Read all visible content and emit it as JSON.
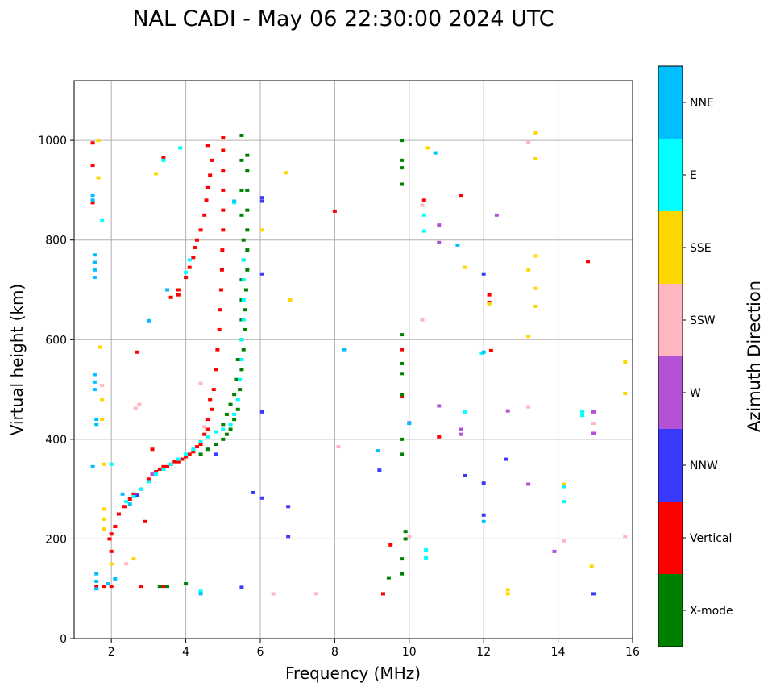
{
  "chart_data": {
    "type": "scatter",
    "title": "NAL CADI - May 06 22:30:00 2024 UTC",
    "xlabel": "Frequency (MHz)",
    "ylabel": "Virtual height (km)",
    "xlim": [
      1,
      16
    ],
    "ylim": [
      0,
      1120
    ],
    "xticks": [
      2,
      4,
      6,
      8,
      10,
      12,
      14,
      16
    ],
    "yticks": [
      0,
      200,
      400,
      600,
      800,
      1000
    ],
    "grid": true,
    "colorbar": {
      "title": "Azimuth Direction",
      "categories": [
        {
          "label": "X-mode",
          "color": "#008000"
        },
        {
          "label": "Vertical",
          "color": "#ff0000"
        },
        {
          "label": "NNW",
          "color": "#3a3aff"
        },
        {
          "label": "W",
          "color": "#b452d6"
        },
        {
          "label": "SSW",
          "color": "#ffb6c1"
        },
        {
          "label": "SSE",
          "color": "#ffd700"
        },
        {
          "label": "E",
          "color": "#00ffff"
        },
        {
          "label": "NNE",
          "color": "#00bfff"
        }
      ]
    },
    "series": [
      {
        "name": "Vertical",
        "color": "#ff0000",
        "points": [
          [
            2.0,
            210
          ],
          [
            2.1,
            225
          ],
          [
            2.2,
            250
          ],
          [
            2.35,
            265
          ],
          [
            2.5,
            280
          ],
          [
            2.6,
            290
          ],
          [
            2.8,
            300
          ],
          [
            3.0,
            320
          ],
          [
            3.2,
            335
          ],
          [
            3.4,
            345
          ],
          [
            3.6,
            350
          ],
          [
            3.8,
            355
          ],
          [
            4.0,
            365
          ],
          [
            4.2,
            375
          ],
          [
            4.4,
            390
          ],
          [
            4.6,
            420
          ],
          [
            4.7,
            460
          ],
          [
            4.75,
            500
          ],
          [
            4.8,
            540
          ],
          [
            4.85,
            580
          ],
          [
            4.9,
            620
          ],
          [
            4.92,
            660
          ],
          [
            4.95,
            700
          ],
          [
            4.97,
            740
          ],
          [
            4.98,
            780
          ],
          [
            5.0,
            820
          ],
          [
            5.0,
            860
          ],
          [
            5.0,
            900
          ],
          [
            5.0,
            940
          ],
          [
            5.0,
            980
          ],
          [
            5.0,
            1005
          ],
          [
            3.3,
            340
          ],
          [
            3.5,
            345
          ],
          [
            3.7,
            355
          ],
          [
            3.9,
            360
          ],
          [
            4.1,
            370
          ],
          [
            4.3,
            385
          ],
          [
            4.5,
            410
          ],
          [
            4.6,
            440
          ],
          [
            4.65,
            480
          ],
          [
            3.6,
            685
          ],
          [
            3.8,
            700
          ],
          [
            4.0,
            725
          ],
          [
            4.1,
            745
          ],
          [
            4.2,
            765
          ],
          [
            4.25,
            785
          ],
          [
            4.3,
            800
          ],
          [
            4.4,
            820
          ],
          [
            4.5,
            850
          ],
          [
            4.55,
            880
          ],
          [
            4.6,
            905
          ],
          [
            4.65,
            930
          ],
          [
            4.7,
            960
          ],
          [
            1.55,
            755
          ],
          [
            1.5,
            995
          ],
          [
            1.5,
            950
          ],
          [
            1.5,
            875
          ],
          [
            1.6,
            105
          ],
          [
            1.8,
            105
          ],
          [
            2.0,
            105
          ],
          [
            2.8,
            105
          ],
          [
            3.4,
            105
          ],
          [
            2.7,
            575
          ],
          [
            3.4,
            965
          ],
          [
            3.8,
            690
          ],
          [
            4.6,
            990
          ],
          [
            8.0,
            858
          ],
          [
            10.4,
            880
          ],
          [
            11.4,
            890
          ],
          [
            12.15,
            690
          ],
          [
            12.15,
            675
          ],
          [
            12.2,
            578
          ],
          [
            10.8,
            405
          ],
          [
            9.8,
            580
          ],
          [
            9.8,
            487
          ],
          [
            9.3,
            90
          ],
          [
            9.5,
            188
          ],
          [
            14.8,
            757
          ],
          [
            2.9,
            235
          ],
          [
            3.1,
            380
          ],
          [
            2.0,
            175
          ],
          [
            1.95,
            200
          ]
        ]
      },
      {
        "name": "X-mode",
        "color": "#008000",
        "points": [
          [
            4.4,
            370
          ],
          [
            4.6,
            380
          ],
          [
            4.8,
            390
          ],
          [
            5.0,
            400
          ],
          [
            5.1,
            410
          ],
          [
            5.2,
            420
          ],
          [
            5.3,
            440
          ],
          [
            5.4,
            460
          ],
          [
            5.45,
            500
          ],
          [
            5.5,
            540
          ],
          [
            5.55,
            580
          ],
          [
            5.6,
            620
          ],
          [
            5.6,
            660
          ],
          [
            5.62,
            700
          ],
          [
            5.65,
            740
          ],
          [
            5.65,
            780
          ],
          [
            5.65,
            820
          ],
          [
            5.65,
            860
          ],
          [
            5.65,
            900
          ],
          [
            5.65,
            940
          ],
          [
            5.65,
            970
          ],
          [
            5.0,
            430
          ],
          [
            5.1,
            450
          ],
          [
            5.2,
            470
          ],
          [
            5.3,
            490
          ],
          [
            5.35,
            520
          ],
          [
            5.4,
            560
          ],
          [
            5.5,
            600
          ],
          [
            5.5,
            640
          ],
          [
            5.5,
            680
          ],
          [
            5.5,
            720
          ],
          [
            5.55,
            760
          ],
          [
            5.55,
            800
          ],
          [
            5.5,
            850
          ],
          [
            5.5,
            900
          ],
          [
            5.5,
            960
          ],
          [
            5.5,
            1010
          ],
          [
            9.8,
            1000
          ],
          [
            9.8,
            960
          ],
          [
            9.8,
            945
          ],
          [
            9.8,
            912
          ],
          [
            9.8,
            610
          ],
          [
            9.8,
            552
          ],
          [
            9.8,
            532
          ],
          [
            9.8,
            490
          ],
          [
            9.8,
            400
          ],
          [
            9.8,
            370
          ],
          [
            9.8,
            160
          ],
          [
            9.8,
            130
          ],
          [
            9.9,
            215
          ],
          [
            9.9,
            200
          ],
          [
            9.45,
            122
          ],
          [
            3.5,
            105
          ],
          [
            3.3,
            105
          ],
          [
            4.0,
            110
          ]
        ]
      },
      {
        "name": "NNW",
        "color": "#3a3aff",
        "points": [
          [
            6.05,
            885
          ],
          [
            6.05,
            878
          ],
          [
            6.05,
            732
          ],
          [
            6.05,
            455
          ],
          [
            6.05,
            282
          ],
          [
            5.8,
            293
          ],
          [
            5.5,
            103
          ],
          [
            6.75,
            265
          ],
          [
            6.75,
            205
          ],
          [
            9.2,
            338
          ],
          [
            10.0,
            433
          ],
          [
            11.5,
            327
          ],
          [
            12.0,
            732
          ],
          [
            12.0,
            312
          ],
          [
            12.0,
            248
          ],
          [
            12.6,
            360
          ],
          [
            14.95,
            90
          ],
          [
            4.8,
            370
          ],
          [
            2.7,
            288
          ]
        ]
      },
      {
        "name": "W",
        "color": "#b452d6",
        "points": [
          [
            10.8,
            830
          ],
          [
            10.8,
            795
          ],
          [
            10.8,
            467
          ],
          [
            11.4,
            420
          ],
          [
            11.4,
            410
          ],
          [
            12.35,
            850
          ],
          [
            12.65,
            457
          ],
          [
            13.2,
            310
          ],
          [
            13.9,
            175
          ],
          [
            14.95,
            455
          ],
          [
            14.95,
            412
          ],
          [
            3.1,
            330
          ]
        ]
      },
      {
        "name": "SSW",
        "color": "#ffb6c1",
        "points": [
          [
            10.35,
            870
          ],
          [
            10.35,
            640
          ],
          [
            10.0,
            432
          ],
          [
            10.0,
            205
          ],
          [
            8.1,
            385
          ],
          [
            6.35,
            90
          ],
          [
            7.5,
            90
          ],
          [
            2.65,
            462
          ],
          [
            2.75,
            470
          ],
          [
            1.75,
            508
          ],
          [
            13.2,
            997
          ],
          [
            13.2,
            465
          ],
          [
            14.15,
            196
          ],
          [
            14.95,
            432
          ],
          [
            15.8,
            205
          ],
          [
            2.4,
            150
          ],
          [
            4.4,
            512
          ],
          [
            4.5,
            425
          ]
        ]
      },
      {
        "name": "SSE",
        "color": "#ffd700",
        "points": [
          [
            1.65,
            1000
          ],
          [
            1.65,
            925
          ],
          [
            1.7,
            585
          ],
          [
            1.75,
            480
          ],
          [
            1.75,
            440
          ],
          [
            1.8,
            350
          ],
          [
            1.8,
            260
          ],
          [
            1.8,
            240
          ],
          [
            6.7,
            935
          ],
          [
            6.8,
            680
          ],
          [
            6.05,
            820
          ],
          [
            10.5,
            985
          ],
          [
            11.5,
            745
          ],
          [
            12.15,
            672
          ],
          [
            13.2,
            740
          ],
          [
            13.2,
            607
          ],
          [
            13.4,
            1015
          ],
          [
            13.4,
            963
          ],
          [
            13.4,
            768
          ],
          [
            13.4,
            703
          ],
          [
            13.4,
            667
          ],
          [
            14.15,
            310
          ],
          [
            14.9,
            145
          ],
          [
            15.8,
            555
          ],
          [
            15.8,
            492
          ],
          [
            12.65,
            98
          ],
          [
            12.65,
            90
          ],
          [
            3.2,
            933
          ],
          [
            2.6,
            160
          ],
          [
            1.8,
            220
          ],
          [
            2.0,
            150
          ]
        ]
      },
      {
        "name": "E",
        "color": "#00ffff",
        "points": [
          [
            2.4,
            275
          ],
          [
            2.6,
            285
          ],
          [
            2.8,
            300
          ],
          [
            3.0,
            315
          ],
          [
            3.2,
            330
          ],
          [
            3.4,
            340
          ],
          [
            3.6,
            350
          ],
          [
            3.8,
            360
          ],
          [
            4.0,
            370
          ],
          [
            4.2,
            380
          ],
          [
            4.4,
            395
          ],
          [
            4.6,
            405
          ],
          [
            4.8,
            415
          ],
          [
            5.0,
            420
          ],
          [
            5.2,
            430
          ],
          [
            5.3,
            450
          ],
          [
            5.4,
            480
          ],
          [
            5.45,
            520
          ],
          [
            5.5,
            560
          ],
          [
            5.5,
            600
          ],
          [
            5.55,
            640
          ],
          [
            5.55,
            680
          ],
          [
            5.55,
            720
          ],
          [
            5.55,
            760
          ],
          [
            10.4,
            850
          ],
          [
            10.4,
            818
          ],
          [
            10.45,
            178
          ],
          [
            10.45,
            162
          ],
          [
            11.5,
            455
          ],
          [
            11.95,
            573
          ],
          [
            14.15,
            275
          ],
          [
            14.15,
            305
          ],
          [
            14.65,
            455
          ],
          [
            14.65,
            448
          ],
          [
            3.85,
            985
          ],
          [
            3.4,
            960
          ],
          [
            4.0,
            735
          ],
          [
            4.1,
            760
          ],
          [
            5.3,
            875
          ],
          [
            4.4,
            95
          ],
          [
            1.75,
            840
          ],
          [
            2.0,
            350
          ]
        ]
      },
      {
        "name": "NNE",
        "color": "#00bfff",
        "points": [
          [
            1.55,
            770
          ],
          [
            1.55,
            755
          ],
          [
            1.55,
            740
          ],
          [
            1.55,
            725
          ],
          [
            1.55,
            530
          ],
          [
            1.55,
            515
          ],
          [
            1.55,
            500
          ],
          [
            1.6,
            440
          ],
          [
            1.6,
            430
          ],
          [
            1.5,
            890
          ],
          [
            1.5,
            880
          ],
          [
            1.5,
            345
          ],
          [
            1.6,
            130
          ],
          [
            1.6,
            115
          ],
          [
            1.6,
            100
          ],
          [
            1.9,
            110
          ],
          [
            2.1,
            120
          ],
          [
            4.4,
            90
          ],
          [
            5.3,
            878
          ],
          [
            8.25,
            580
          ],
          [
            9.15,
            377
          ],
          [
            10.7,
            975
          ],
          [
            11.3,
            790
          ],
          [
            10.0,
            432
          ],
          [
            12.0,
            575
          ],
          [
            12.0,
            235
          ],
          [
            3.5,
            700
          ],
          [
            3.0,
            638
          ],
          [
            2.3,
            290
          ],
          [
            2.5,
            270
          ]
        ]
      }
    ]
  }
}
